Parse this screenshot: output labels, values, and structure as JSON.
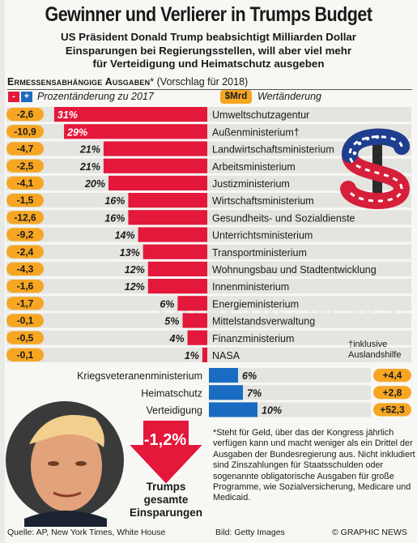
{
  "header": {
    "title": "Gewinner und Verlierer in Trumps Budget",
    "subtitle_lines": [
      "US Präsident Donald Trump beabsichtigt Milliarden Dollar",
      "Einsparungen bei Regierungsstellen, will aber viel mehr",
      "für Verteidigung und Heimatschutz ausgeben"
    ]
  },
  "section": {
    "caps": "Ermessensabhängige Ausgaben",
    "suffix": "* (Vorschlag für 2018)",
    "minus_sign": "-",
    "plus_sign": "+",
    "pct_legend": "Prozentänderung zu 2017",
    "mrd_badge": "$Mrd",
    "mrd_legend": "Wertänderung"
  },
  "chart_data": {
    "type": "bar",
    "units": {
      "percent": "%",
      "value": "$Mrd"
    },
    "losers": [
      {
        "name": "Umweltschutzagentur",
        "pct_label": "31%",
        "pct": 31,
        "value_label": "-2,6",
        "value": -2.6
      },
      {
        "name": "Außenministerium†",
        "pct_label": "29%",
        "pct": 29,
        "value_label": "-10,9",
        "value": -10.9
      },
      {
        "name": "Landwirtschaftsministerium",
        "pct_label": "21%",
        "pct": 21,
        "value_label": "-4,7",
        "value": -4.7
      },
      {
        "name": "Arbeitsministerium",
        "pct_label": "21%",
        "pct": 21,
        "value_label": "-2,5",
        "value": -2.5
      },
      {
        "name": "Justizministerium",
        "pct_label": "20%",
        "pct": 20,
        "value_label": "-4,1",
        "value": -4.1
      },
      {
        "name": "Wirtschaftsministerium",
        "pct_label": "16%",
        "pct": 16,
        "value_label": "-1,5",
        "value": -1.5
      },
      {
        "name": "Gesundheits- und Sozialdienste",
        "pct_label": "16%",
        "pct": 16,
        "value_label": "-12,6",
        "value": -12.6
      },
      {
        "name": "Unterrichtsministerium",
        "pct_label": "14%",
        "pct": 14,
        "value_label": "-9,2",
        "value": -9.2
      },
      {
        "name": "Transportministerium",
        "pct_label": "13%",
        "pct": 13,
        "value_label": "-2,4",
        "value": -2.4
      },
      {
        "name": "Wohnungsbau und Stadtentwicklung",
        "pct_label": "12%",
        "pct": 12,
        "value_label": "-4,3",
        "value": -4.3
      },
      {
        "name": "Innenministerium",
        "pct_label": "12%",
        "pct": 12,
        "value_label": "-1,6",
        "value": -1.6
      },
      {
        "name": "Energieministerium",
        "pct_label": "6%",
        "pct": 6,
        "value_label": "-1,7",
        "value": -1.7
      },
      {
        "name": "Mittelstandsverwaltung",
        "pct_label": "5%",
        "pct": 5,
        "value_label": "-0,1",
        "value": -0.1
      },
      {
        "name": "Finanzministerium",
        "pct_label": "4%",
        "pct": 4,
        "value_label": "-0,5",
        "value": -0.5
      },
      {
        "name": "NASA",
        "pct_label": "1%",
        "pct": 1,
        "value_label": "-0,1",
        "value": -0.1
      }
    ],
    "winners": [
      {
        "name": "Kriegsveteranenministerium",
        "pct_label": "6%",
        "pct": 6,
        "value_label": "+4,4",
        "value": 4.4
      },
      {
        "name": "Heimatschutz",
        "pct_label": "7%",
        "pct": 7,
        "value_label": "+2,8",
        "value": 2.8
      },
      {
        "name": "Verteidigung",
        "pct_label": "10%",
        "pct": 10,
        "value_label": "+52,3",
        "value": 52.3
      }
    ],
    "total": {
      "value_label": "-1,2%",
      "value": -1.2,
      "label_lines": [
        "Trumps",
        "gesamte",
        "Einsparungen"
      ]
    }
  },
  "notes": {
    "dagger_lines": [
      "†inklusive",
      "Auslandshilfe"
    ],
    "footnote": "*Steht für Geld, über das der Kongress jährlich verfügen kann und macht weniger als ein Drittel der Ausgaben der Bundesregierung aus. Nicht inkludiert sind Zinszahlungen für Staatsschulden oder sogenannte obligatorische Ausgaben für große Programme, wie Sozialversicherung, Medicare und Medicaid."
  },
  "footer": {
    "source": "Quelle: AP, New York Times, White House",
    "picture": "Bild: Getty Images",
    "copyright": "© GRAPHIC NEWS"
  },
  "watermark": "GRAPHIC NEWS",
  "colors": {
    "loser_bar": "#e3183b",
    "winner_bar": "#1a6cc2",
    "value_pill": "#f6a623",
    "row_band": "#e4e4e0",
    "arrow": "#e3183b"
  }
}
